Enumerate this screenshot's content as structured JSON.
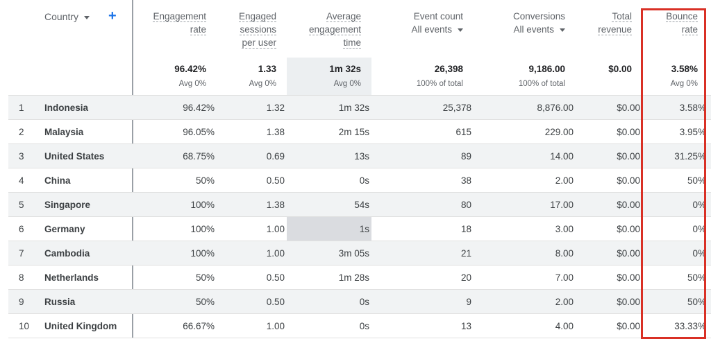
{
  "header": {
    "country_label": "Country",
    "add_label": "+",
    "engagement_rate": [
      "Engagement",
      "rate"
    ],
    "engaged_sessions": [
      "Engaged",
      "sessions",
      "per user"
    ],
    "avg_engagement": [
      "Average",
      "engagement",
      "time"
    ],
    "event_count": "Event count",
    "event_count_filter": "All events",
    "conversions": "Conversions",
    "conversions_filter": "All events",
    "total_revenue": [
      "Total",
      "revenue"
    ],
    "bounce_rate": [
      "Bounce",
      "rate"
    ]
  },
  "totals": {
    "engagement_rate": "96.42%",
    "engaged_sessions": "1.33",
    "avg_engagement": "1m 32s",
    "event_count": "26,398",
    "conversions": "9,186.00",
    "total_revenue": "$0.00",
    "bounce_rate": "3.58%",
    "engagement_rate_sub": "Avg 0%",
    "engaged_sessions_sub": "Avg 0%",
    "avg_engagement_sub": "Avg 0%",
    "event_count_sub": "100% of total",
    "conversions_sub": "100% of total",
    "bounce_rate_sub": "Avg 0%"
  },
  "rows": [
    {
      "rank": "1",
      "country": "Indonesia",
      "engagement_rate": "96.42%",
      "engaged_sessions": "1.32",
      "avg_engagement": "1m 32s",
      "event_count": "25,378",
      "conversions": "8,876.00",
      "total_revenue": "$0.00",
      "bounce_rate": "3.58%"
    },
    {
      "rank": "2",
      "country": "Malaysia",
      "engagement_rate": "96.05%",
      "engaged_sessions": "1.38",
      "avg_engagement": "2m 15s",
      "event_count": "615",
      "conversions": "229.00",
      "total_revenue": "$0.00",
      "bounce_rate": "3.95%"
    },
    {
      "rank": "3",
      "country": "United States",
      "engagement_rate": "68.75%",
      "engaged_sessions": "0.69",
      "avg_engagement": "13s",
      "event_count": "89",
      "conversions": "14.00",
      "total_revenue": "$0.00",
      "bounce_rate": "31.25%"
    },
    {
      "rank": "4",
      "country": "China",
      "engagement_rate": "50%",
      "engaged_sessions": "0.50",
      "avg_engagement": "0s",
      "event_count": "38",
      "conversions": "2.00",
      "total_revenue": "$0.00",
      "bounce_rate": "50%"
    },
    {
      "rank": "5",
      "country": "Singapore",
      "engagement_rate": "100%",
      "engaged_sessions": "1.38",
      "avg_engagement": "54s",
      "event_count": "80",
      "conversions": "17.00",
      "total_revenue": "$0.00",
      "bounce_rate": "0%"
    },
    {
      "rank": "6",
      "country": "Germany",
      "engagement_rate": "100%",
      "engaged_sessions": "1.00",
      "avg_engagement": "1s",
      "event_count": "18",
      "conversions": "3.00",
      "total_revenue": "$0.00",
      "bounce_rate": "0%"
    },
    {
      "rank": "7",
      "country": "Cambodia",
      "engagement_rate": "100%",
      "engaged_sessions": "1.00",
      "avg_engagement": "3m 05s",
      "event_count": "21",
      "conversions": "8.00",
      "total_revenue": "$0.00",
      "bounce_rate": "0%"
    },
    {
      "rank": "8",
      "country": "Netherlands",
      "engagement_rate": "50%",
      "engaged_sessions": "0.50",
      "avg_engagement": "1m 28s",
      "event_count": "20",
      "conversions": "7.00",
      "total_revenue": "$0.00",
      "bounce_rate": "50%"
    },
    {
      "rank": "9",
      "country": "Russia",
      "engagement_rate": "50%",
      "engaged_sessions": "0.50",
      "avg_engagement": "0s",
      "event_count": "9",
      "conversions": "2.00",
      "total_revenue": "$0.00",
      "bounce_rate": "50%"
    },
    {
      "rank": "10",
      "country": "United Kingdom",
      "engagement_rate": "66.67%",
      "engaged_sessions": "1.00",
      "avg_engagement": "0s",
      "event_count": "13",
      "conversions": "4.00",
      "total_revenue": "$0.00",
      "bounce_rate": "33.33%"
    }
  ],
  "colors": {
    "accent": "#1a73e8",
    "highlight_box": "#d93025",
    "row_shade": "#f1f3f4"
  }
}
